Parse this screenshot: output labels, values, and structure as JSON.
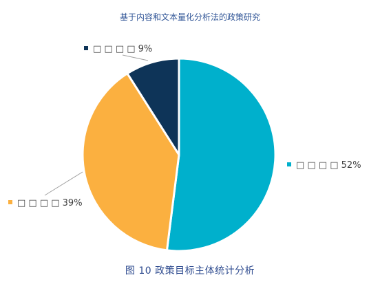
{
  "header": {
    "title": "基于内容和文本量化分析法的政策研究"
  },
  "figure": {
    "caption": "图 10 政策目标主体统计分析"
  },
  "colors": {
    "s1": "#00b0cc",
    "s2": "#fbb040",
    "s3": "#0e3458",
    "leader": "#a0a0a0",
    "text": "#404040"
  },
  "chart_data": {
    "type": "pie",
    "title": "",
    "slices": [
      {
        "label": "□ □ □ □",
        "value": 52,
        "display": "52%",
        "color": "#00b0cc"
      },
      {
        "label": "□ □ □ □",
        "value": 39,
        "display": "39%",
        "color": "#fbb040"
      },
      {
        "label": "□ □ □ □",
        "value": 9,
        "display": "9%",
        "color": "#0e3458"
      }
    ],
    "legend": "none"
  }
}
